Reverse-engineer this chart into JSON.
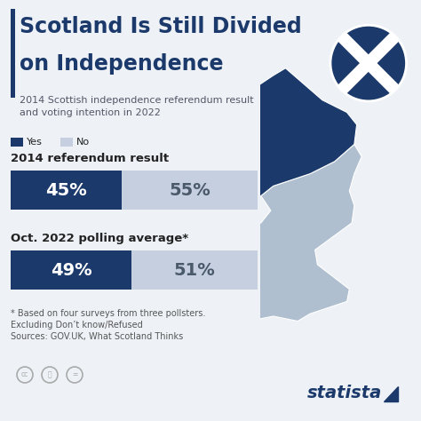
{
  "title_line1": "Scotland Is Still Divided",
  "title_line2": "on Independence",
  "subtitle": "2014 Scottish independence referendum result\nand voting intention in 2022",
  "legend_yes": "Yes",
  "legend_no": "No",
  "bar1_label": "2014 referendum result",
  "bar1_yes": 45,
  "bar1_no": 55,
  "bar2_label": "Oct. 2022 polling average*",
  "bar2_yes": 49,
  "bar2_no": 51,
  "yes_color": "#1b3a6b",
  "no_color": "#c5cfe0",
  "bg_color": "#eef2f7",
  "title_color": "#1b3a6b",
  "text_dark": "#222222",
  "text_mid": "#555555",
  "footnote_line1": "* Based on four surveys from three pollsters.",
  "footnote_line2": "Excluding Don’t know/Refused",
  "footnote_line3": "Sources: GOV.UK, What Scotland Thinks",
  "statista_text": "statista",
  "accent_bar_color": "#1b3a6b",
  "bar_text_color": "#ffffff",
  "no_text_color": "#4a5a6a",
  "map_scotland_color": "#1b3a6b",
  "map_rest_color": "#b0bfcf",
  "map_ireland_color": "#c5cfe0",
  "flag_bg_color": "#1b3a6b",
  "flag_cross_color": "#ffffff"
}
